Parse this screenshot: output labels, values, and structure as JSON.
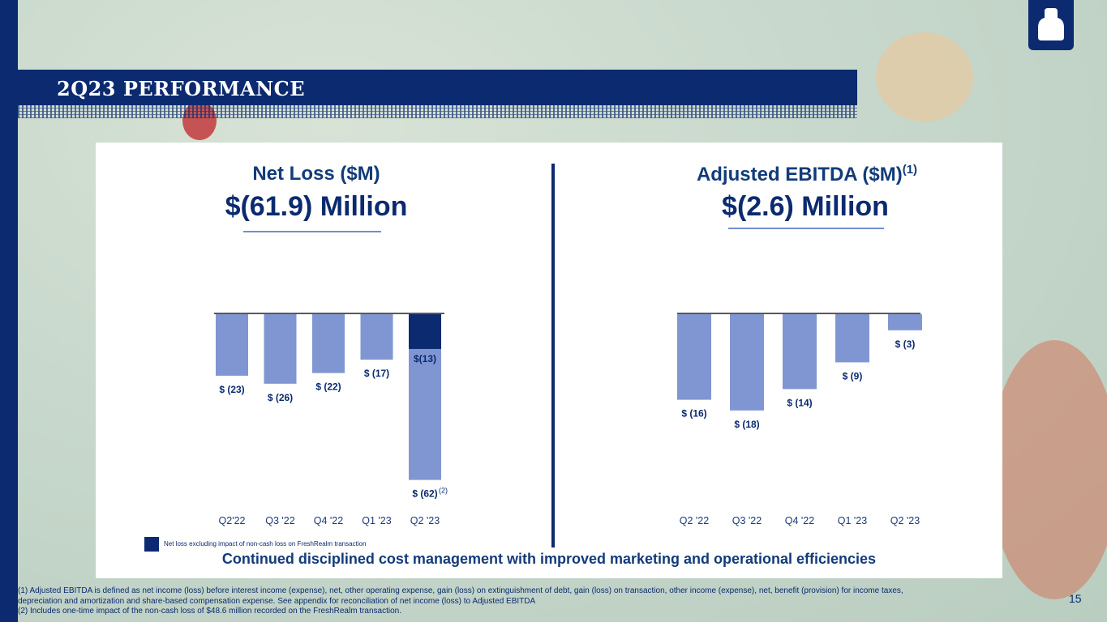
{
  "title": "2Q23 PERFORMANCE",
  "page_number": "15",
  "legend_text": "Net loss excluding impact of non-cash loss on FreshRealm transaction",
  "tagline": "Continued disciplined cost management with improved marketing and operational efficiencies",
  "footnotes": [
    "(1) Adjusted EBITDA is defined as net income (loss) before interest income (expense), net, other operating expense, gain (loss) on extinguishment of debt, gain (loss) on transaction, other income (expense), net, benefit (provision) for income taxes,",
    "depreciation and amortization and share-based compensation expense. See appendix for reconciliation of net income (loss) to Adjusted EBITDA",
    "(2) Includes one-time impact of the non-cash loss of $48.6 million recorded on the FreshRealm transaction."
  ],
  "colors": {
    "navy": "#0b2a6f",
    "bar": "#8096d2",
    "accent_line": "#6f8fd0"
  },
  "chart_data": [
    {
      "type": "bar",
      "title": "Net Loss ($M)",
      "headline": "$(61.9) Million",
      "categories": [
        "Q2'22",
        "Q3 '22",
        "Q4 '22",
        "Q1 '23",
        "Q2 '23"
      ],
      "values": [
        -23,
        -26,
        -22,
        -17,
        -62
      ],
      "labels": [
        "$ (23)",
        "$ (26)",
        "$ (22)",
        "$ (17)",
        "$ (62)"
      ],
      "highlight": {
        "category": "Q2 '23",
        "value": -13,
        "label": "$(13)",
        "name": "Net loss excluding impact of non-cash loss on FreshRealm transaction"
      },
      "footnote_marker": "(2)",
      "ylim": [
        -62,
        0
      ]
    },
    {
      "type": "bar",
      "title": "Adjusted EBITDA ($M)",
      "title_sup": "(1)",
      "headline": "$(2.6) Million",
      "categories": [
        "Q2 '22",
        "Q3 '22",
        "Q4 '22",
        "Q1 '23",
        "Q2 '23"
      ],
      "values": [
        -16,
        -18,
        -14,
        -9,
        -3
      ],
      "labels": [
        "$ (16)",
        "$ (18)",
        "$ (14)",
        "$ (9)",
        "$ (3)"
      ],
      "ylim": [
        -18,
        0
      ]
    }
  ]
}
